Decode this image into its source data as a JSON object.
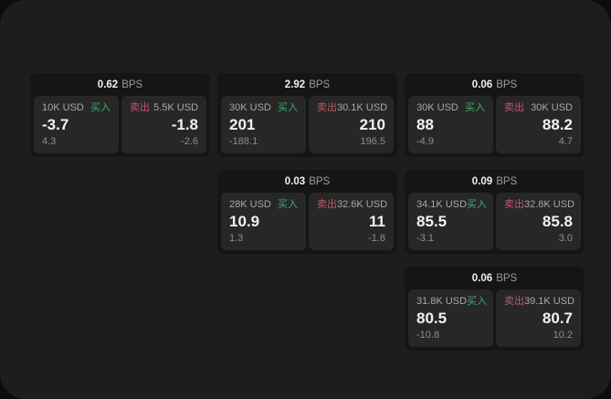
{
  "window": {
    "outer_background": "#0c0c0c",
    "panel_background": "#1d1d1d"
  },
  "labels": {
    "bps_unit": "BPS",
    "buy": "买入",
    "sell": "卖出"
  },
  "colors": {
    "buy_green": "#40ab6d",
    "sell_red": "#c4566b",
    "card_background": "#151515",
    "tile_background": "#272727",
    "primary_text": "#f2f2f2",
    "secondary_text": "#a8a8a8",
    "muted_text": "#8e8e8e"
  },
  "cards": [
    {
      "bps": "0.62",
      "buy": {
        "amount": "10K USD",
        "price": "-3.7",
        "delta": "4.3"
      },
      "sell": {
        "amount": "5.5K USD",
        "price": "-1.8",
        "delta": "-2.6"
      }
    },
    {
      "bps": "2.92",
      "buy": {
        "amount": "30K USD",
        "price": "201",
        "delta": "-188.1"
      },
      "sell": {
        "amount": "30.1K USD",
        "price": "210",
        "delta": "196.5"
      }
    },
    {
      "bps": "0.06",
      "buy": {
        "amount": "30K USD",
        "price": "88",
        "delta": "-4.9"
      },
      "sell": {
        "amount": "30K USD",
        "price": "88.2",
        "delta": "4.7"
      }
    },
    {
      "bps": "0.03",
      "buy": {
        "amount": "28K USD",
        "price": "10.9",
        "delta": "1.3"
      },
      "sell": {
        "amount": "32.6K USD",
        "price": "11",
        "delta": "-1.8"
      }
    },
    {
      "bps": "0.09",
      "buy": {
        "amount": "34.1K USD",
        "price": "85.5",
        "delta": "-3.1"
      },
      "sell": {
        "amount": "32.8K USD",
        "price": "85.8",
        "delta": "3.0"
      }
    },
    {
      "bps": "0.06",
      "buy": {
        "amount": "31.8K USD",
        "price": "80.5",
        "delta": "-10.8"
      },
      "sell": {
        "amount": "39.1K USD",
        "price": "80.7",
        "delta": "10.2"
      }
    }
  ]
}
